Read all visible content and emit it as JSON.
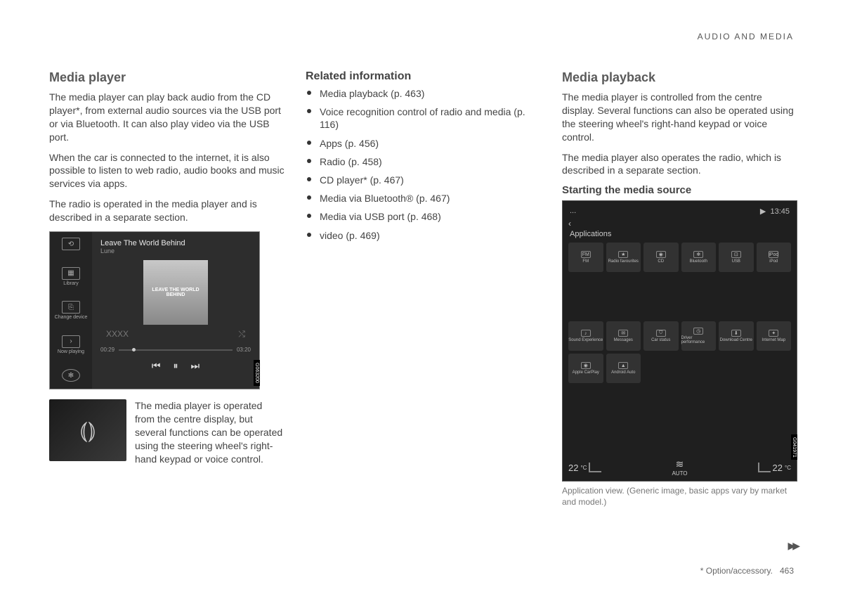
{
  "header": {
    "section": "AUDIO AND MEDIA"
  },
  "col1": {
    "title": "Media player",
    "p1": "The media player can play back audio from the CD player*, from external audio sources via the USB port or via Bluetooth. It can also play video via the USB port.",
    "p2": "When the car is connected to the internet, it is also possible to listen to web radio, audio books and music services via apps.",
    "p3": "The radio is operated in the media player and is described in a separate section.",
    "player": {
      "track_title": "Leave The World Behind",
      "track_artist": "Lune",
      "album_text": "LEAVE THE WORLD BEHIND",
      "left_items": [
        "",
        "Library",
        "Change device",
        "Now playing",
        ""
      ],
      "left_icons": [
        "⟲",
        "▦",
        "⎘",
        "›",
        "✻"
      ],
      "time_elapsed": "00:29",
      "time_total": "03:20",
      "shuffle_left": "XXXX",
      "shuffle_right": "⤭",
      "controls": [
        "⏮",
        "⏸",
        "⏭"
      ],
      "ref": "G063200"
    },
    "voice_icon": "⦅⦆",
    "voice_text": "The media player is operated from the centre display, but several functions can be operated using the steering wheel's right-hand keypad or voice control."
  },
  "col2": {
    "title": "Related information",
    "items": [
      "Media playback (p. 463)",
      "Voice recognition control of radio and media (p. 116)",
      "Apps (p. 456)",
      "Radio (p. 458)",
      "CD player* (p. 467)",
      "Media via Bluetooth® (p. 467)",
      "Media via USB port (p. 468)",
      "video (p. 469)"
    ]
  },
  "col3": {
    "title": "Media playback",
    "p1": "The media player is controlled from the centre display. Several functions can also be operated using the steering wheel's right-hand keypad or voice control.",
    "p2": "The media player also operates the radio, which is described in a separate section.",
    "subtitle": "Starting the media source",
    "app": {
      "status_left": "...",
      "status_time": "13:45",
      "status_arrow": "▶",
      "back": "‹",
      "header": "Applications",
      "row1": [
        {
          "icon": "FM",
          "label": "FM"
        },
        {
          "icon": "★",
          "label": "Radio favourites"
        },
        {
          "icon": "◉",
          "label": "CD"
        },
        {
          "icon": "✻",
          "label": "Bluetooth"
        },
        {
          "icon": "⊡",
          "label": "USB"
        },
        {
          "icon": "iPod",
          "label": "iPod"
        }
      ],
      "row2": [
        {
          "icon": "♪",
          "label": "Sound Experience"
        },
        {
          "icon": "✉",
          "label": "Messages"
        },
        {
          "icon": "⛉",
          "label": "Car status"
        },
        {
          "icon": "◷",
          "label": "Driver performance"
        },
        {
          "icon": "⬇",
          "label": "Download Centre"
        },
        {
          "icon": "✦",
          "label": "Internet Map"
        }
      ],
      "row3": [
        {
          "icon": "◉",
          "label": "Apple CarPlay"
        },
        {
          "icon": "▲",
          "label": "Android Auto"
        }
      ],
      "temp_left": "22",
      "temp_right": "22",
      "unit": "°C",
      "fan": "≋",
      "fan_label": "AUTO",
      "ref": "G041971"
    },
    "caption": "Application view. (Generic image, basic apps vary by market and model.)"
  },
  "footer": {
    "note": "* Option/accessory.",
    "page": "463"
  },
  "continue": "▶▶"
}
